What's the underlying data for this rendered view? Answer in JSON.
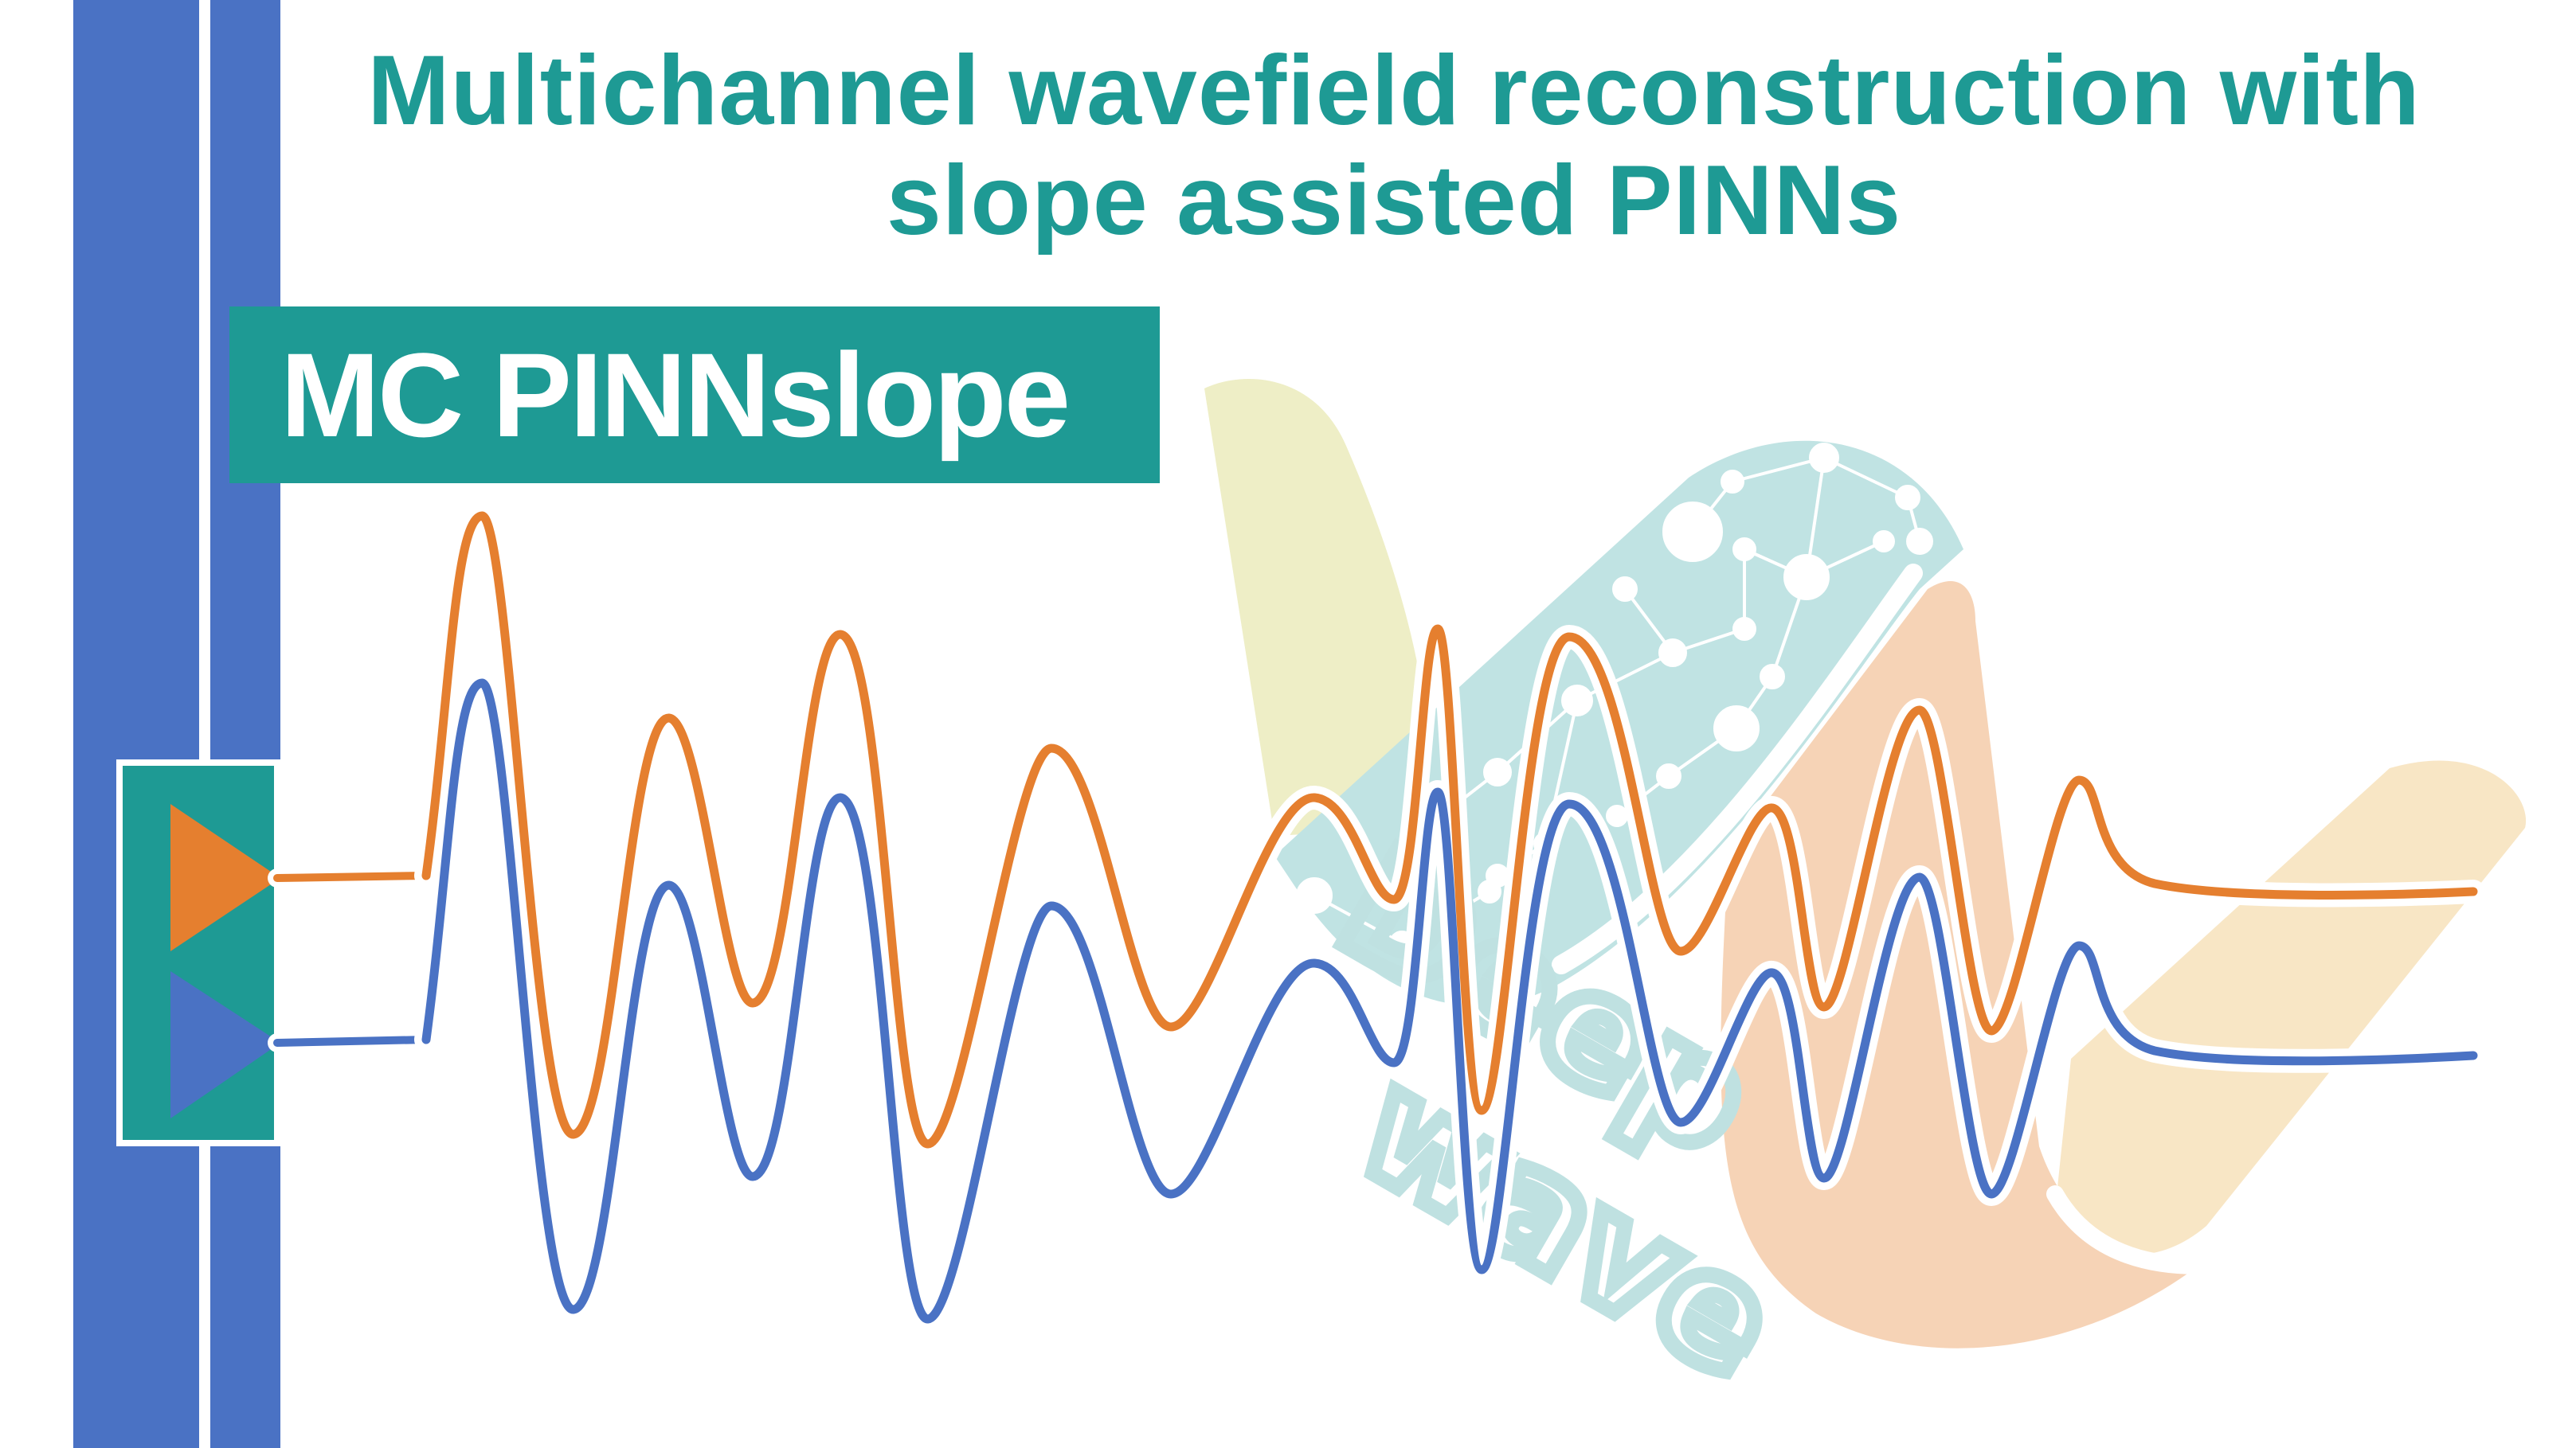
{
  "title": {
    "line1": "Multichannel wavefield reconstruction with",
    "line2": "slope assisted PINNs"
  },
  "badge": {
    "label": "MC PINNslope"
  },
  "watermark": {
    "line1": "Deep",
    "line2": "wave"
  },
  "colors": {
    "teal": "#1e9a94",
    "blue": "#4a72c4",
    "orange": "#e57f2f",
    "blade_yellow": "#eeeec6",
    "blade_cyan": "#c0e3e3",
    "blade_peach": "#f6d3b6",
    "blade_cream": "#f8e6c5"
  },
  "icons": [
    "orange-triangle-icon",
    "blue-triangle-icon",
    "neural-network-icon"
  ]
}
